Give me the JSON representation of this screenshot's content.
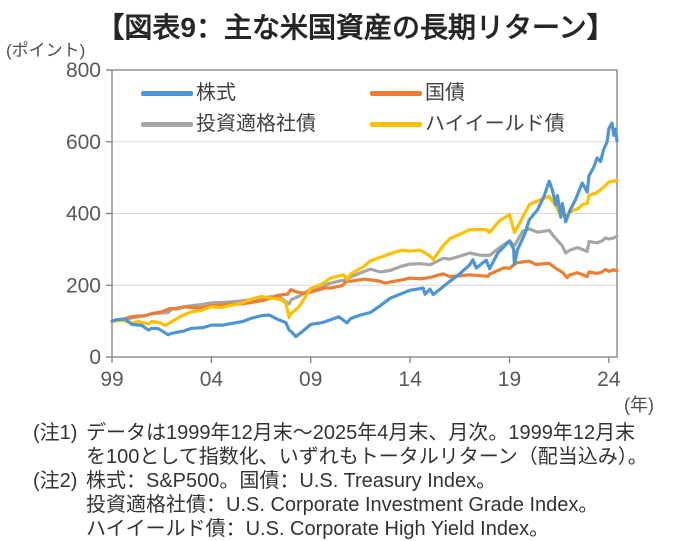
{
  "header": {
    "title": "【図表9：主な米国資産の長期リターン】",
    "y_axis_unit": "(ポイント)",
    "x_axis_unit": "(年)"
  },
  "chart_data": {
    "type": "line",
    "title": "【図表9：主な米国資産の長期リターン】",
    "y_unit_label": "(ポイント)",
    "x_unit_label": "(年)",
    "base_value": 100,
    "ylim": [
      0,
      800
    ],
    "yticks": [
      0,
      200,
      400,
      600,
      800
    ],
    "x_range": [
      1999.92,
      2025.33
    ],
    "x_encoding": "decimal_year",
    "xticks": [
      {
        "year": 1999.92,
        "label": "99"
      },
      {
        "year": 2004.92,
        "label": "04"
      },
      {
        "year": 2009.92,
        "label": "09"
      },
      {
        "year": 2014.92,
        "label": "14"
      },
      {
        "year": 2019.92,
        "label": "19"
      },
      {
        "year": 2024.92,
        "label": "24"
      }
    ],
    "grid": "horizontal",
    "legend_position": "top-inside",
    "axis_color": "#808080",
    "grid_color": "#D9D9D9",
    "tick_label_color": "#595959",
    "draw_order": [
      2,
      1,
      3,
      0
    ],
    "series": [
      {
        "id": "stocks",
        "name": "株式",
        "color": "#4E95D4",
        "points": [
          [
            1999.92,
            100
          ],
          [
            2000.17,
            104
          ],
          [
            2000.58,
            106
          ],
          [
            2000.92,
            91
          ],
          [
            2001.42,
            88
          ],
          [
            2001.75,
            75
          ],
          [
            2001.92,
            80
          ],
          [
            2002.25,
            79
          ],
          [
            2002.75,
            62
          ],
          [
            2002.92,
            66
          ],
          [
            2003.5,
            72
          ],
          [
            2003.92,
            80
          ],
          [
            2004.5,
            82
          ],
          [
            2004.92,
            89
          ],
          [
            2005.5,
            89
          ],
          [
            2005.92,
            93
          ],
          [
            2006.5,
            99
          ],
          [
            2006.92,
            108
          ],
          [
            2007.42,
            115
          ],
          [
            2007.83,
            117
          ],
          [
            2008.25,
            105
          ],
          [
            2008.67,
            96
          ],
          [
            2008.83,
            75
          ],
          [
            2008.92,
            72
          ],
          [
            2009.17,
            57
          ],
          [
            2009.58,
            75
          ],
          [
            2009.92,
            91
          ],
          [
            2010.5,
            96
          ],
          [
            2010.92,
            104
          ],
          [
            2011.33,
            112
          ],
          [
            2011.75,
            95
          ],
          [
            2011.92,
            107
          ],
          [
            2012.42,
            117
          ],
          [
            2012.92,
            124
          ],
          [
            2013.42,
            143
          ],
          [
            2013.92,
            164
          ],
          [
            2014.42,
            175
          ],
          [
            2014.92,
            186
          ],
          [
            2015.58,
            192
          ],
          [
            2015.67,
            175
          ],
          [
            2015.92,
            189
          ],
          [
            2016.08,
            174
          ],
          [
            2016.58,
            196
          ],
          [
            2016.92,
            211
          ],
          [
            2017.42,
            232
          ],
          [
            2017.92,
            257
          ],
          [
            2018.08,
            271
          ],
          [
            2018.25,
            248
          ],
          [
            2018.75,
            270
          ],
          [
            2018.92,
            246
          ],
          [
            2019.33,
            290
          ],
          [
            2019.92,
            323
          ],
          [
            2020.13,
            300
          ],
          [
            2020.17,
            258
          ],
          [
            2020.33,
            300
          ],
          [
            2020.67,
            340
          ],
          [
            2020.92,
            383
          ],
          [
            2021.33,
            410
          ],
          [
            2021.67,
            450
          ],
          [
            2021.92,
            490
          ],
          [
            2022.08,
            465
          ],
          [
            2022.25,
            425
          ],
          [
            2022.33,
            450
          ],
          [
            2022.5,
            390
          ],
          [
            2022.58,
            428
          ],
          [
            2022.75,
            377
          ],
          [
            2022.92,
            403
          ],
          [
            2023.25,
            440
          ],
          [
            2023.58,
            485
          ],
          [
            2023.83,
            460
          ],
          [
            2023.92,
            505
          ],
          [
            2024.17,
            530
          ],
          [
            2024.33,
            555
          ],
          [
            2024.5,
            545
          ],
          [
            2024.67,
            580
          ],
          [
            2024.83,
            600
          ],
          [
            2024.92,
            637
          ],
          [
            2025.08,
            652
          ],
          [
            2025.17,
            618
          ],
          [
            2025.25,
            635
          ],
          [
            2025.33,
            603
          ]
        ]
      },
      {
        "id": "treasury",
        "name": "国債",
        "color": "#ED7D31",
        "points": [
          [
            1999.92,
            100
          ],
          [
            2000.42,
            104
          ],
          [
            2000.92,
            113
          ],
          [
            2001.58,
            115
          ],
          [
            2001.92,
            121
          ],
          [
            2002.42,
            126
          ],
          [
            2002.83,
            135
          ],
          [
            2003.17,
            134
          ],
          [
            2003.58,
            140
          ],
          [
            2003.92,
            138
          ],
          [
            2004.42,
            137
          ],
          [
            2004.92,
            143
          ],
          [
            2005.5,
            145
          ],
          [
            2005.92,
            147
          ],
          [
            2006.42,
            148
          ],
          [
            2006.92,
            152
          ],
          [
            2007.58,
            158
          ],
          [
            2007.92,
            165
          ],
          [
            2008.25,
            172
          ],
          [
            2008.75,
            175
          ],
          [
            2008.92,
            188
          ],
          [
            2009.17,
            182
          ],
          [
            2009.5,
            178
          ],
          [
            2009.92,
            181
          ],
          [
            2010.67,
            193
          ],
          [
            2010.92,
            192
          ],
          [
            2011.5,
            199
          ],
          [
            2011.75,
            212
          ],
          [
            2011.92,
            211
          ],
          [
            2012.58,
            217
          ],
          [
            2012.92,
            215
          ],
          [
            2013.33,
            212
          ],
          [
            2013.67,
            206
          ],
          [
            2013.92,
            209
          ],
          [
            2014.5,
            215
          ],
          [
            2014.92,
            220
          ],
          [
            2015.5,
            218
          ],
          [
            2015.92,
            222
          ],
          [
            2016.58,
            232
          ],
          [
            2016.92,
            224
          ],
          [
            2017.5,
            227
          ],
          [
            2017.92,
            229
          ],
          [
            2018.83,
            225
          ],
          [
            2018.92,
            231
          ],
          [
            2019.67,
            249
          ],
          [
            2019.92,
            247
          ],
          [
            2020.25,
            262
          ],
          [
            2020.58,
            265
          ],
          [
            2020.92,
            267
          ],
          [
            2021.25,
            258
          ],
          [
            2021.92,
            261
          ],
          [
            2022.25,
            247
          ],
          [
            2022.58,
            236
          ],
          [
            2022.83,
            221
          ],
          [
            2022.92,
            228
          ],
          [
            2023.33,
            235
          ],
          [
            2023.58,
            230
          ],
          [
            2023.83,
            224
          ],
          [
            2023.92,
            237
          ],
          [
            2024.33,
            233
          ],
          [
            2024.58,
            237
          ],
          [
            2024.75,
            244
          ],
          [
            2024.92,
            239
          ],
          [
            2025.17,
            243
          ],
          [
            2025.33,
            240
          ]
        ]
      },
      {
        "id": "ig-corporate",
        "name": "投資適格社債",
        "color": "#A6A6A6",
        "points": [
          [
            1999.92,
            100
          ],
          [
            2000.42,
            103
          ],
          [
            2000.92,
            109
          ],
          [
            2001.58,
            115
          ],
          [
            2001.92,
            120
          ],
          [
            2002.42,
            123
          ],
          [
            2002.75,
            124
          ],
          [
            2002.92,
            133
          ],
          [
            2003.42,
            139
          ],
          [
            2003.92,
            143
          ],
          [
            2004.42,
            146
          ],
          [
            2004.92,
            151
          ],
          [
            2005.5,
            152
          ],
          [
            2005.92,
            154
          ],
          [
            2006.42,
            156
          ],
          [
            2006.92,
            160
          ],
          [
            2007.42,
            164
          ],
          [
            2007.92,
            168
          ],
          [
            2008.42,
            164
          ],
          [
            2008.83,
            148
          ],
          [
            2008.92,
            159
          ],
          [
            2009.42,
            172
          ],
          [
            2009.92,
            189
          ],
          [
            2010.58,
            199
          ],
          [
            2010.92,
            206
          ],
          [
            2011.58,
            214
          ],
          [
            2011.92,
            223
          ],
          [
            2012.58,
            238
          ],
          [
            2012.92,
            245
          ],
          [
            2013.42,
            237
          ],
          [
            2013.92,
            241
          ],
          [
            2014.42,
            252
          ],
          [
            2014.92,
            259
          ],
          [
            2015.42,
            260
          ],
          [
            2015.92,
            257
          ],
          [
            2016.58,
            275
          ],
          [
            2016.92,
            273
          ],
          [
            2017.42,
            281
          ],
          [
            2017.92,
            290
          ],
          [
            2018.42,
            284
          ],
          [
            2018.92,
            283
          ],
          [
            2019.42,
            305
          ],
          [
            2019.92,
            324
          ],
          [
            2020.17,
            310
          ],
          [
            2020.58,
            350
          ],
          [
            2020.92,
            357
          ],
          [
            2021.33,
            348
          ],
          [
            2021.92,
            353
          ],
          [
            2022.25,
            330
          ],
          [
            2022.58,
            310
          ],
          [
            2022.75,
            290
          ],
          [
            2022.92,
            297
          ],
          [
            2023.33,
            305
          ],
          [
            2023.58,
            300
          ],
          [
            2023.83,
            294
          ],
          [
            2023.92,
            322
          ],
          [
            2024.33,
            318
          ],
          [
            2024.58,
            324
          ],
          [
            2024.75,
            332
          ],
          [
            2024.92,
            329
          ],
          [
            2025.17,
            332
          ],
          [
            2025.33,
            337
          ]
        ]
      },
      {
        "id": "high-yield",
        "name": "ハイイールド債",
        "color": "#FFC000",
        "points": [
          [
            1999.92,
            100
          ],
          [
            2000.42,
            102
          ],
          [
            2000.58,
            101
          ],
          [
            2000.92,
            94
          ],
          [
            2001.25,
            99
          ],
          [
            2001.75,
            92
          ],
          [
            2001.92,
            99
          ],
          [
            2002.33,
            96
          ],
          [
            2002.58,
            88
          ],
          [
            2002.92,
            98
          ],
          [
            2003.42,
            115
          ],
          [
            2003.92,
            126
          ],
          [
            2004.42,
            130
          ],
          [
            2004.92,
            140
          ],
          [
            2005.42,
            138
          ],
          [
            2005.92,
            144
          ],
          [
            2006.42,
            150
          ],
          [
            2006.92,
            161
          ],
          [
            2007.42,
            169
          ],
          [
            2007.92,
            164
          ],
          [
            2008.42,
            160
          ],
          [
            2008.67,
            150
          ],
          [
            2008.83,
            110
          ],
          [
            2008.92,
            121
          ],
          [
            2009.33,
            140
          ],
          [
            2009.67,
            170
          ],
          [
            2009.92,
            191
          ],
          [
            2010.5,
            204
          ],
          [
            2010.92,
            220
          ],
          [
            2011.58,
            229
          ],
          [
            2011.75,
            216
          ],
          [
            2011.92,
            231
          ],
          [
            2012.58,
            252
          ],
          [
            2012.92,
            268
          ],
          [
            2013.42,
            278
          ],
          [
            2013.92,
            288
          ],
          [
            2014.5,
            298
          ],
          [
            2014.92,
            295
          ],
          [
            2015.42,
            298
          ],
          [
            2015.92,
            282
          ],
          [
            2016.08,
            272
          ],
          [
            2016.58,
            310
          ],
          [
            2016.92,
            330
          ],
          [
            2017.42,
            342
          ],
          [
            2017.92,
            355
          ],
          [
            2018.75,
            355
          ],
          [
            2018.92,
            347
          ],
          [
            2019.42,
            380
          ],
          [
            2019.92,
            397
          ],
          [
            2020.17,
            347
          ],
          [
            2020.42,
            372
          ],
          [
            2020.92,
            425
          ],
          [
            2021.42,
            437
          ],
          [
            2021.92,
            448
          ],
          [
            2022.25,
            420
          ],
          [
            2022.5,
            395
          ],
          [
            2022.58,
            410
          ],
          [
            2022.75,
            383
          ],
          [
            2022.92,
            403
          ],
          [
            2023.42,
            415
          ],
          [
            2023.58,
            425
          ],
          [
            2023.83,
            428
          ],
          [
            2023.92,
            451
          ],
          [
            2024.33,
            458
          ],
          [
            2024.58,
            470
          ],
          [
            2024.75,
            478
          ],
          [
            2024.92,
            488
          ],
          [
            2025.17,
            490
          ],
          [
            2025.33,
            492
          ]
        ]
      }
    ]
  },
  "notes": {
    "note1": {
      "label": "(注1)",
      "lines": [
        "データは1999年12月末～2025年4月末、月次。1999年12月末",
        "を100として指数化、いずれもトータルリターン（配当込み）。"
      ]
    },
    "note2": {
      "label": "(注2)",
      "lines": [
        "株式：S&P500。国債：U.S. Treasury Index。",
        "投資適格社債：U.S. Corporate Investment Grade Index。",
        "ハイイールド債：U.S. Corporate High Yield Index。"
      ]
    }
  }
}
